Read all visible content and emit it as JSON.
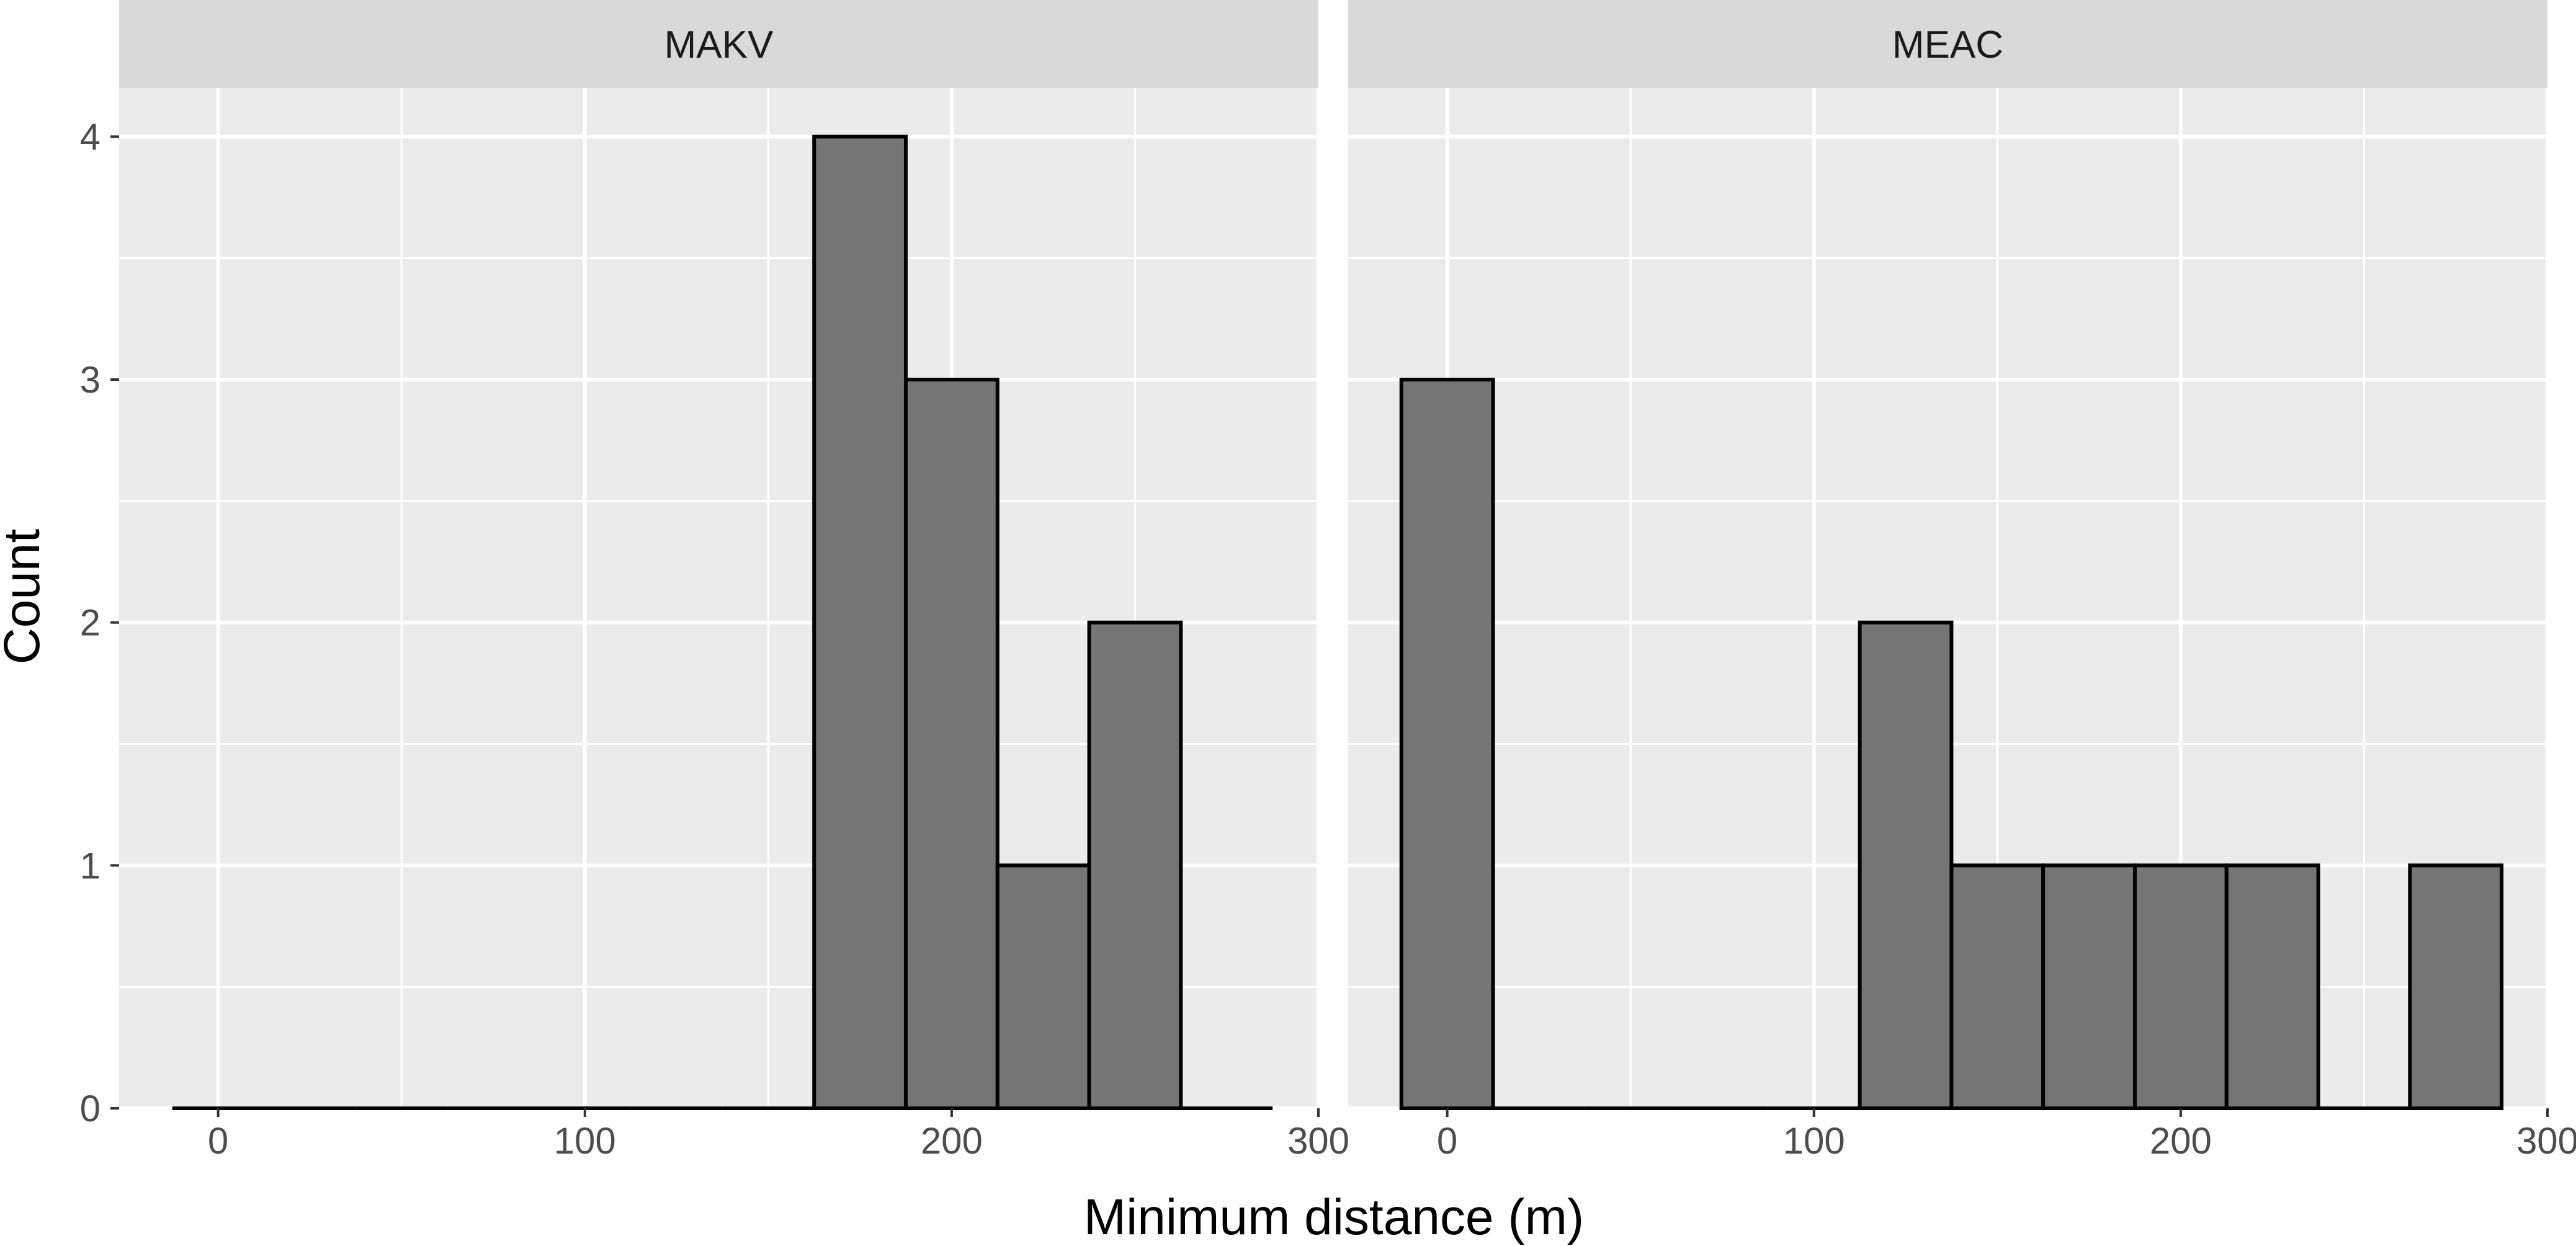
{
  "chart_data": {
    "type": "bar",
    "xlabel": "Minimum distance (m)",
    "ylabel": "Count",
    "xlim": [
      -27,
      300
    ],
    "ylim": [
      0,
      4.2
    ],
    "x_ticks": [
      0,
      100,
      200,
      300
    ],
    "y_ticks": [
      0,
      1,
      2,
      3,
      4
    ],
    "bin_width": 25,
    "grid": true,
    "bar_fill": "#757575",
    "bar_stroke": "#000000",
    "panel_background": "#ebebeb",
    "strip_background": "#d9d9d9",
    "panels": [
      {
        "name": "MAKV",
        "bins": [
          {
            "x": 0,
            "count": 0
          },
          {
            "x": 25,
            "count": 0
          },
          {
            "x": 50,
            "count": 0
          },
          {
            "x": 75,
            "count": 0
          },
          {
            "x": 100,
            "count": 0
          },
          {
            "x": 125,
            "count": 0
          },
          {
            "x": 150,
            "count": 0
          },
          {
            "x": 175,
            "count": 4
          },
          {
            "x": 200,
            "count": 3
          },
          {
            "x": 225,
            "count": 1
          },
          {
            "x": 250,
            "count": 2
          },
          {
            "x": 275,
            "count": 0
          }
        ]
      },
      {
        "name": "MEAC",
        "bins": [
          {
            "x": 0,
            "count": 3
          },
          {
            "x": 25,
            "count": 0
          },
          {
            "x": 50,
            "count": 0
          },
          {
            "x": 75,
            "count": 0
          },
          {
            "x": 100,
            "count": 0
          },
          {
            "x": 125,
            "count": 2
          },
          {
            "x": 150,
            "count": 1
          },
          {
            "x": 175,
            "count": 1
          },
          {
            "x": 200,
            "count": 1
          },
          {
            "x": 225,
            "count": 1
          },
          {
            "x": 250,
            "count": 0
          },
          {
            "x": 275,
            "count": 1
          }
        ]
      }
    ]
  }
}
